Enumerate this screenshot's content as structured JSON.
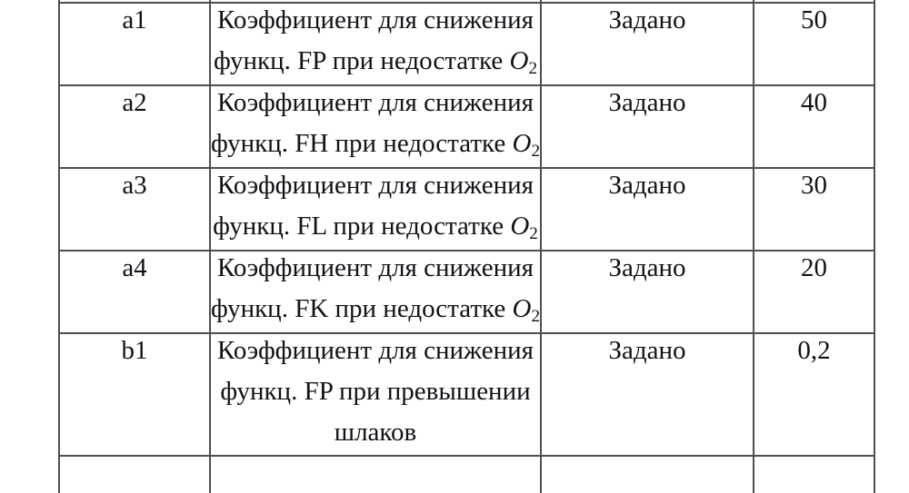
{
  "page": {
    "background_color": "#ffffff",
    "text_color": "#121218",
    "border_color": "#4f4f4f"
  },
  "table": {
    "rows": [
      {
        "param": "a1",
        "desc_lines": [
          {
            "text": "Коэффициент для снижения"
          },
          {
            "text": "функц. FP при недостатке ",
            "formula_base": "O",
            "formula_sub": "2"
          }
        ],
        "source": "Задано",
        "value": "50"
      },
      {
        "param": "a2",
        "desc_lines": [
          {
            "text": "Коэффициент для снижения"
          },
          {
            "text": "функц. FH при недостатке ",
            "formula_base": "O",
            "formula_sub": "2"
          }
        ],
        "source": "Задано",
        "value": "40"
      },
      {
        "param": "a3",
        "desc_lines": [
          {
            "text": "Коэффициент для снижения"
          },
          {
            "text": "функц. FL при недостатке ",
            "formula_base": "O",
            "formula_sub": "2"
          }
        ],
        "source": "Задано",
        "value": "30"
      },
      {
        "param": "a4",
        "desc_lines": [
          {
            "text": "Коэффициент для снижения"
          },
          {
            "text": "функц. FK при недостатке ",
            "formula_base": "O",
            "formula_sub": "2"
          }
        ],
        "source": "Задано",
        "value": "20"
      },
      {
        "param": "b1",
        "desc_lines": [
          {
            "text": "Коэффициент для снижения"
          },
          {
            "text": "функц. FP при превышении"
          },
          {
            "text": "шлаков"
          }
        ],
        "source": "Задано",
        "value": "0,2"
      }
    ]
  }
}
